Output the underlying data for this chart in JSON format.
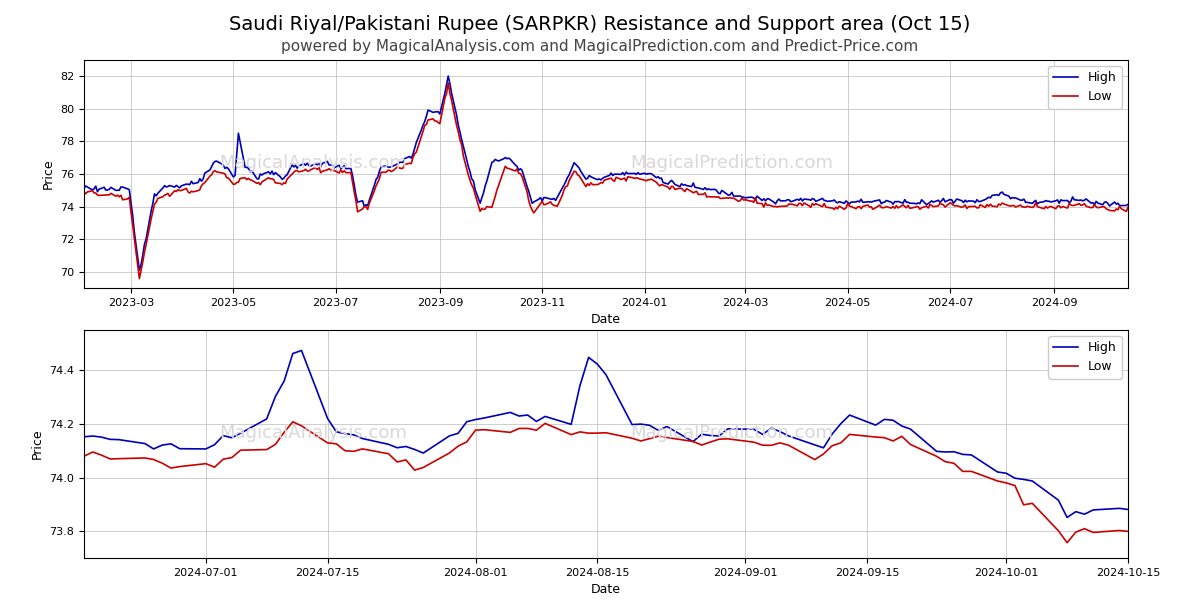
{
  "title": "Saudi Riyal/Pakistani Rupee (SARPKR) Resistance and Support area (Oct 15)",
  "subtitle": "powered by MagicalAnalysis.com and MagicalPrediction.com and Predict-Price.com",
  "title_fontsize": 14,
  "subtitle_fontsize": 11,
  "ylabel": "Price",
  "xlabel": "Date",
  "watermark_color": "#cccccc",
  "high_color": "#0000bb",
  "low_color": "#cc0000",
  "background_color": "#ffffff",
  "grid_color": "#bbbbbb",
  "linewidth": 1.2
}
